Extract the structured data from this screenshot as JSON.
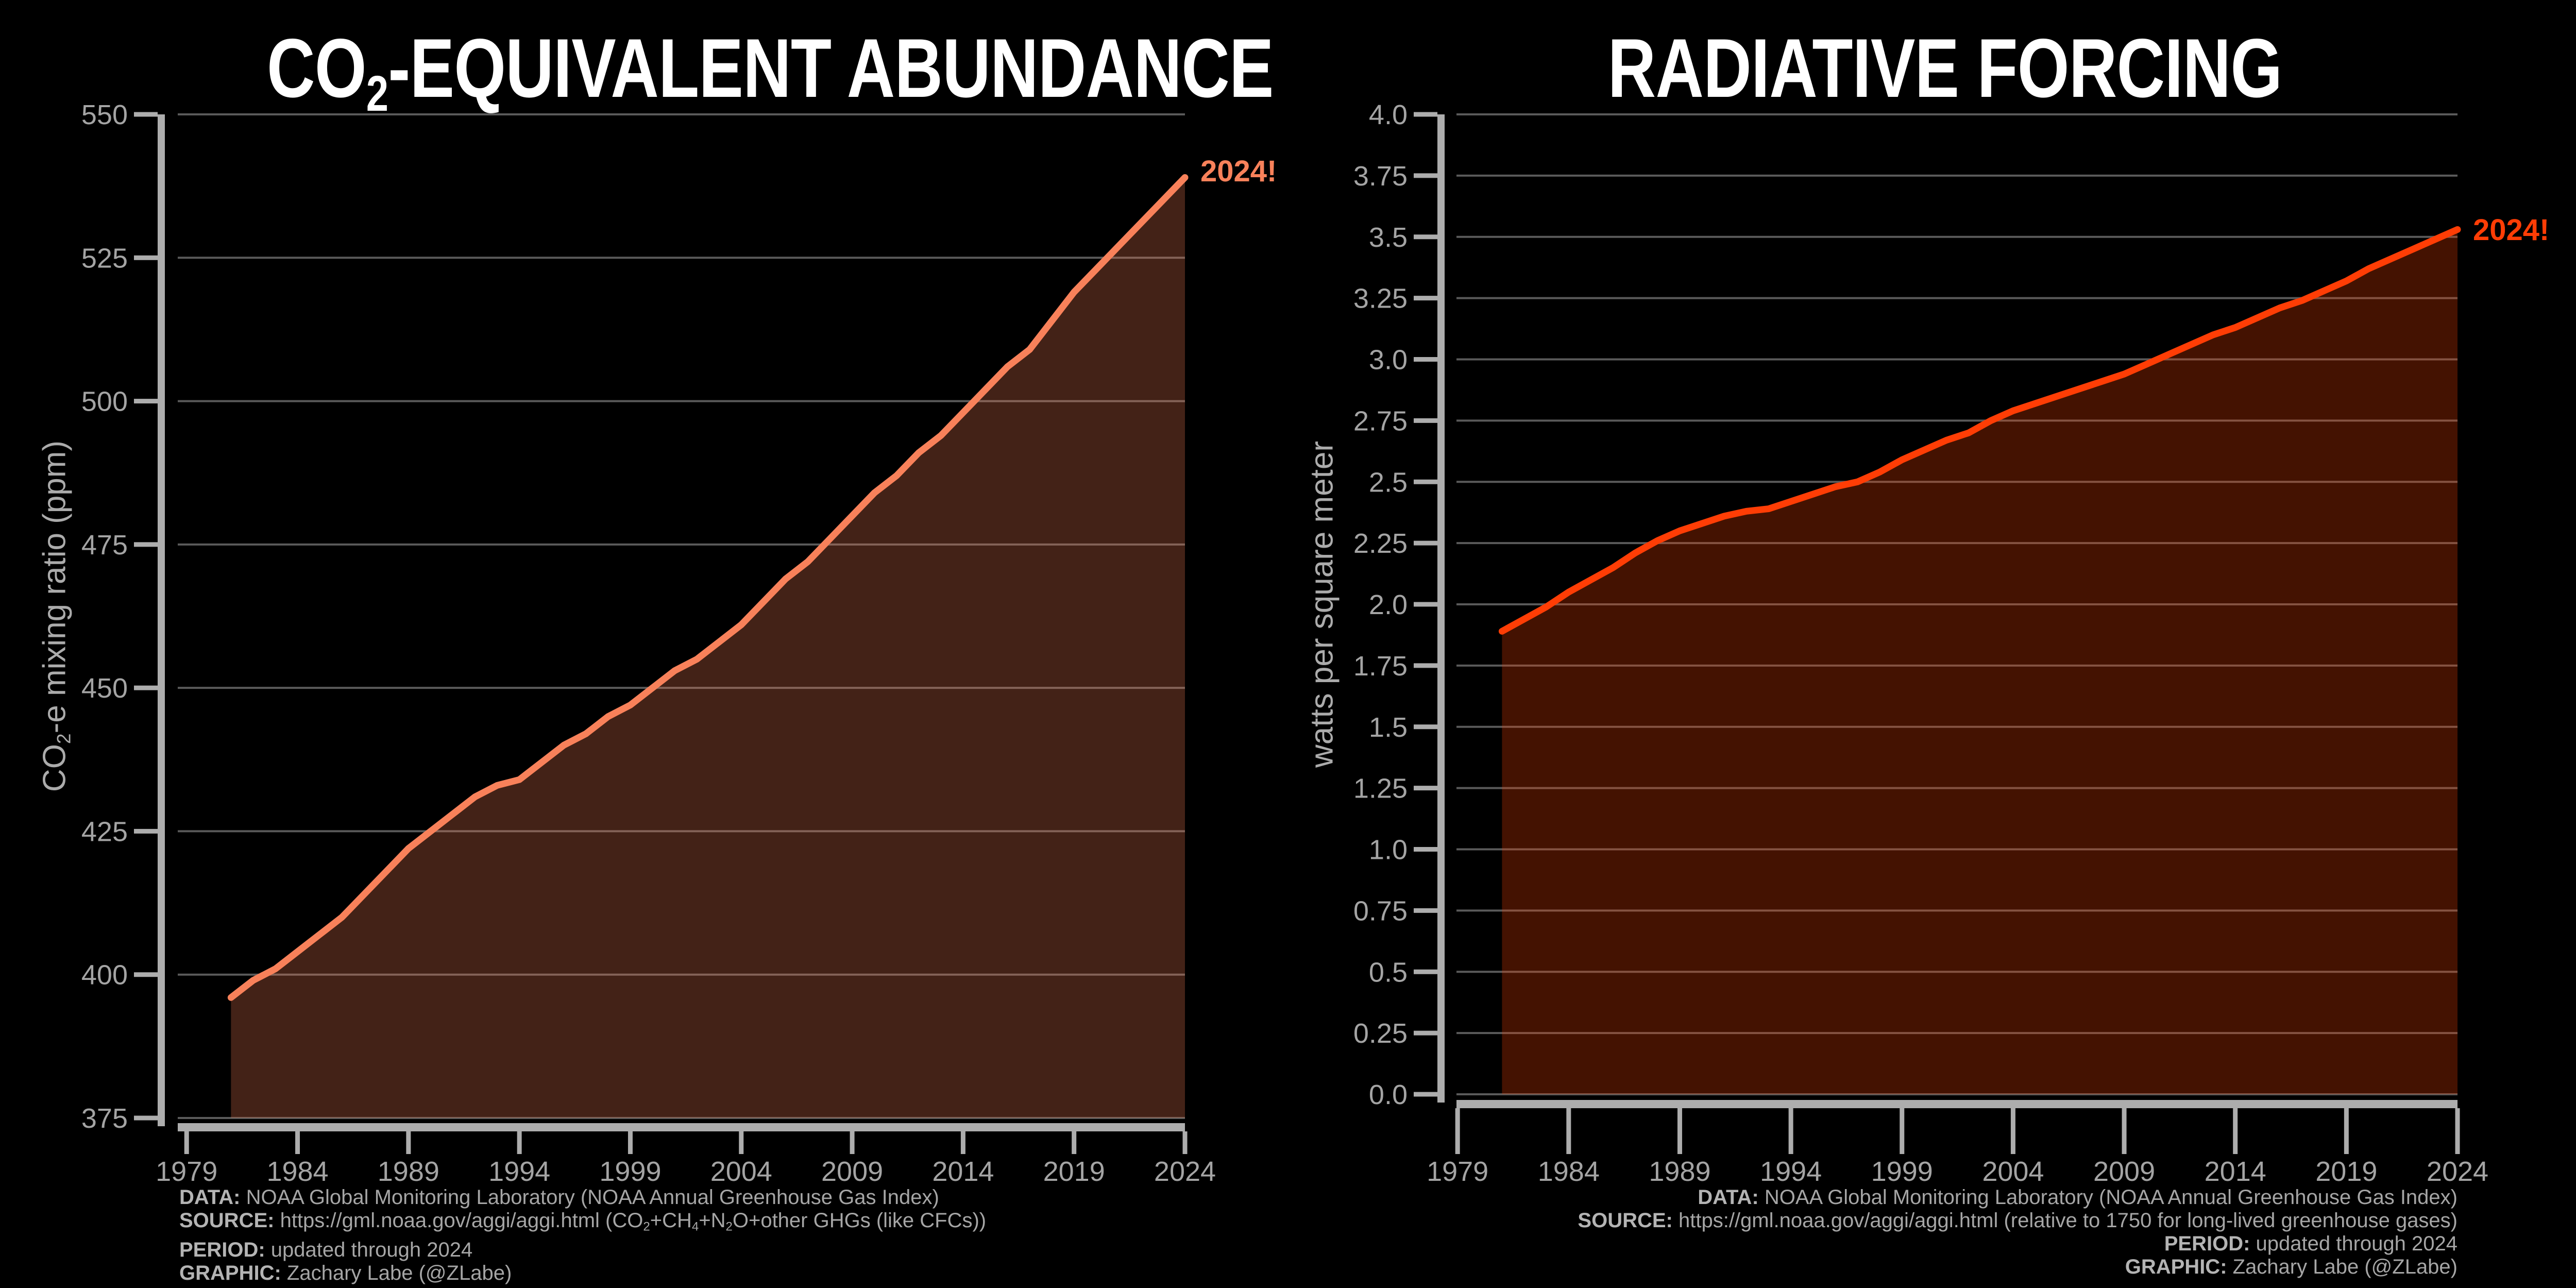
{
  "page": {
    "background": "#000000"
  },
  "charts": [
    {
      "id": "co2e",
      "title_segments": [
        {
          "t": "CO"
        },
        {
          "t": "2",
          "sub": true
        },
        {
          "t": "-EQUIVALENT ABUNDANCE"
        }
      ],
      "ylabel_segments": [
        {
          "t": "CO"
        },
        {
          "t": "2",
          "sub": true
        },
        {
          "t": "-e mixing ratio (ppm)"
        }
      ],
      "annotation": {
        "text": "2024!"
      },
      "colors": {
        "line": "#F8815A",
        "fill": "rgba(249,127,84,0.27)",
        "grid": "#5A5A5A",
        "spine": "#ADADAD",
        "tick_label": "#A4A4A4",
        "title": "#FFFFFF",
        "annotation": "#F8815A"
      },
      "attribution": [
        {
          "label": "DATA:",
          "segments": [
            {
              "t": " NOAA Global Monitoring Laboratory (NOAA Annual Greenhouse Gas Index)"
            }
          ]
        },
        {
          "label": "SOURCE:",
          "segments": [
            {
              "t": " https://gml.noaa.gov/aggi/aggi.html (CO"
            },
            {
              "t": "2",
              "sub": true
            },
            {
              "t": "+CH"
            },
            {
              "t": "4",
              "sub": true
            },
            {
              "t": "+N"
            },
            {
              "t": "2",
              "sub": true
            },
            {
              "t": "O+other GHGs (like CFCs))"
            }
          ]
        },
        {
          "label": "PERIOD:",
          "segments": [
            {
              "t": " updated through 2024"
            }
          ]
        },
        {
          "label": "GRAPHIC:",
          "segments": [
            {
              "t": " Zachary Labe (@ZLabe)"
            }
          ]
        }
      ],
      "chart_data": {
        "type": "area",
        "title": "CO2-EQUIVALENT ABUNDANCE",
        "ylabel": "CO2-e mixing ratio (ppm)",
        "x": [
          1981,
          1982,
          1983,
          1984,
          1985,
          1986,
          1987,
          1988,
          1989,
          1990,
          1991,
          1992,
          1993,
          1994,
          1995,
          1996,
          1997,
          1998,
          1999,
          2000,
          2001,
          2002,
          2003,
          2004,
          2005,
          2006,
          2007,
          2008,
          2009,
          2010,
          2011,
          2012,
          2013,
          2014,
          2015,
          2016,
          2017,
          2018,
          2019,
          2020,
          2021,
          2022,
          2023,
          2024
        ],
        "values": [
          396,
          399,
          401,
          404,
          407,
          410,
          414,
          418,
          422,
          425,
          428,
          431,
          433,
          434,
          437,
          440,
          442,
          445,
          447,
          450,
          453,
          455,
          458,
          461,
          465,
          469,
          472,
          476,
          480,
          484,
          487,
          491,
          494,
          498,
          502,
          506,
          509,
          514,
          519,
          523,
          527,
          531,
          535,
          539
        ],
        "xticks": [
          1979,
          1984,
          1989,
          1994,
          1999,
          2004,
          2009,
          2014,
          2019,
          2024
        ],
        "ytick_values": [
          375,
          400,
          425,
          450,
          475,
          500,
          525,
          550
        ],
        "ytick_labels": [
          "375",
          "400",
          "425",
          "450",
          "475",
          "500",
          "525",
          "550"
        ],
        "xlim": [
          1978.6,
          2024
        ],
        "ylim": [
          375,
          550
        ],
        "grid": true,
        "legend": "none"
      }
    },
    {
      "id": "rf",
      "title_segments": [
        {
          "t": "RADIATIVE FORCING"
        }
      ],
      "ylabel_segments": [
        {
          "t": "watts per square meter"
        }
      ],
      "annotation": {
        "text": "2024!"
      },
      "colors": {
        "line": "#FF3D05",
        "fill": "rgba(252,65,3,0.27)",
        "grid": "#5A5A5A",
        "spine": "#ADADAD",
        "tick_label": "#A4A4A4",
        "title": "#FFFFFF",
        "annotation": "#FF3D05"
      },
      "attribution": [
        {
          "label": "DATA:",
          "segments": [
            {
              "t": " NOAA Global Monitoring Laboratory (NOAA Annual Greenhouse Gas Index)"
            }
          ]
        },
        {
          "label": "SOURCE:",
          "segments": [
            {
              "t": " https://gml.noaa.gov/aggi/aggi.html (relative to 1750 for long-lived greenhouse gases)"
            }
          ]
        },
        {
          "label": "PERIOD:",
          "segments": [
            {
              "t": " updated through 2024"
            }
          ]
        },
        {
          "label": "GRAPHIC:",
          "segments": [
            {
              "t": " Zachary Labe (@ZLabe)"
            }
          ]
        }
      ],
      "chart_data": {
        "type": "area",
        "title": "RADIATIVE FORCING",
        "ylabel": "watts per square meter",
        "x": [
          1981,
          1982,
          1983,
          1984,
          1985,
          1986,
          1987,
          1988,
          1989,
          1990,
          1991,
          1992,
          1993,
          1994,
          1995,
          1996,
          1997,
          1998,
          1999,
          2000,
          2001,
          2002,
          2003,
          2004,
          2005,
          2006,
          2007,
          2008,
          2009,
          2010,
          2011,
          2012,
          2013,
          2014,
          2015,
          2016,
          2017,
          2018,
          2019,
          2020,
          2021,
          2022,
          2023,
          2024
        ],
        "values": [
          1.89,
          1.94,
          1.99,
          2.05,
          2.1,
          2.15,
          2.21,
          2.26,
          2.3,
          2.33,
          2.36,
          2.38,
          2.39,
          2.42,
          2.45,
          2.48,
          2.5,
          2.54,
          2.59,
          2.63,
          2.67,
          2.7,
          2.75,
          2.79,
          2.82,
          2.85,
          2.88,
          2.91,
          2.94,
          2.98,
          3.02,
          3.06,
          3.1,
          3.13,
          3.17,
          3.21,
          3.24,
          3.28,
          3.32,
          3.37,
          3.41,
          3.45,
          3.49,
          3.53
        ],
        "xticks": [
          1979,
          1984,
          1989,
          1994,
          1999,
          2004,
          2009,
          2014,
          2019,
          2024
        ],
        "ytick_values": [
          0,
          0.25,
          0.5,
          0.75,
          1,
          1.25,
          1.5,
          1.75,
          2,
          2.25,
          2.5,
          2.75,
          3,
          3.25,
          3.5,
          3.75,
          4
        ],
        "ytick_labels": [
          "0.0",
          "0.25",
          "0.5",
          "0.75",
          "1.0",
          "1.25",
          "1.5",
          "1.75",
          "2.0",
          "2.25",
          "2.5",
          "2.75",
          "3.0",
          "3.25",
          "3.5",
          "3.75",
          "4.0"
        ],
        "xlim": [
          1978.95,
          2024
        ],
        "ylim": [
          0,
          4
        ],
        "grid": true,
        "legend": "none"
      }
    }
  ]
}
